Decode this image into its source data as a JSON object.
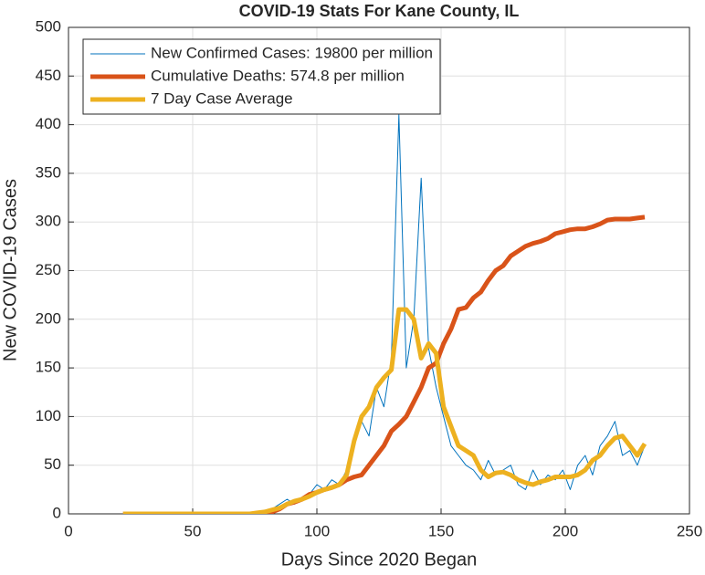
{
  "chart_data": {
    "type": "line",
    "title": "COVID-19 Stats For Kane County, IL",
    "xlabel": "Days Since 2020 Began",
    "ylabel": "New COVID-19 Cases",
    "x": [
      22,
      25,
      28,
      31,
      34,
      37,
      40,
      43,
      46,
      49,
      52,
      55,
      58,
      61,
      64,
      67,
      70,
      73,
      76,
      79,
      82,
      85,
      88,
      91,
      94,
      97,
      100,
      103,
      106,
      109,
      112,
      115,
      118,
      121,
      124,
      127,
      130,
      133,
      136,
      139,
      142,
      145,
      148,
      151,
      154,
      157,
      160,
      163,
      166,
      169,
      172,
      175,
      178,
      181,
      184,
      187,
      190,
      193,
      196,
      199,
      202,
      205,
      208,
      211,
      214,
      217,
      220,
      223,
      226,
      229,
      232
    ],
    "series": [
      {
        "name": "New Confirmed Cases: 19800 per million",
        "color": "#0072bd",
        "width": 1,
        "values": [
          0,
          0,
          0,
          0,
          0,
          0,
          0,
          0,
          0,
          0,
          0,
          0,
          0,
          0,
          0,
          0,
          0,
          1,
          2,
          3,
          5,
          10,
          15,
          10,
          15,
          20,
          30,
          25,
          35,
          30,
          45,
          70,
          95,
          80,
          130,
          110,
          160,
          410,
          150,
          200,
          345,
          170,
          130,
          100,
          70,
          60,
          50,
          45,
          35,
          55,
          40,
          45,
          50,
          30,
          25,
          45,
          30,
          40,
          35,
          45,
          25,
          50,
          60,
          40,
          70,
          80,
          95,
          60,
          65,
          50,
          70
        ]
      },
      {
        "name": "Cumulative Deaths: 574.8 per million",
        "color": "#d95319",
        "width": 5,
        "values": [
          0,
          0,
          0,
          0,
          0,
          0,
          0,
          0,
          0,
          0,
          0,
          0,
          0,
          0,
          0,
          0,
          0,
          0,
          0,
          0,
          2,
          5,
          10,
          12,
          15,
          20,
          22,
          25,
          27,
          30,
          35,
          38,
          40,
          50,
          60,
          70,
          85,
          92,
          100,
          115,
          130,
          150,
          155,
          175,
          190,
          210,
          212,
          222,
          228,
          240,
          250,
          255,
          265,
          270,
          275,
          278,
          280,
          283,
          288,
          290,
          292,
          293,
          293,
          295,
          298,
          302,
          303,
          303,
          303,
          304,
          305
        ]
      },
      {
        "name": "7 Day Case Average",
        "color": "#edb120",
        "width": 5,
        "values": [
          0,
          0,
          0,
          0,
          0,
          0,
          0,
          0,
          0,
          0,
          0,
          0,
          0,
          0,
          0,
          0,
          0,
          0,
          1,
          2,
          4,
          6,
          10,
          13,
          15,
          18,
          22,
          25,
          27,
          30,
          40,
          75,
          100,
          110,
          130,
          140,
          148,
          210,
          210,
          200,
          160,
          175,
          165,
          110,
          90,
          70,
          65,
          60,
          45,
          38,
          42,
          43,
          40,
          35,
          32,
          30,
          33,
          35,
          38,
          38,
          38,
          40,
          45,
          55,
          60,
          70,
          78,
          80,
          70,
          60,
          72
        ]
      }
    ],
    "xlim": [
      0,
      250
    ],
    "xticks": [
      0,
      50,
      100,
      150,
      200,
      250
    ],
    "ylim": [
      0,
      500
    ],
    "yticks": [
      0,
      50,
      100,
      150,
      200,
      250,
      300,
      350,
      400,
      450,
      500
    ],
    "grid": true,
    "legend": "upper-left"
  }
}
